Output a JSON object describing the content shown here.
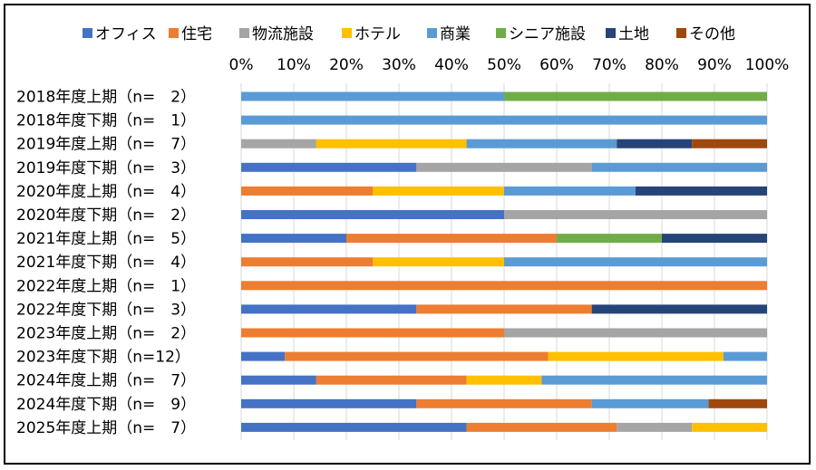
{
  "chart_data": {
    "type": "bar",
    "orientation": "horizontal",
    "stacked": "percent",
    "title": "",
    "xlabel": "",
    "ylabel": "",
    "xlim": [
      0,
      100
    ],
    "x_ticks": [
      "0%",
      "10%",
      "20%",
      "30%",
      "40%",
      "50%",
      "60%",
      "70%",
      "80%",
      "90%",
      "100%"
    ],
    "legend_position": "top",
    "grid": true,
    "categories": [
      "2018年度上期（n=　2）",
      "2018年度下期（n=　1）",
      "2019年度上期（n=　7）",
      "2019年度下期（n=　3）",
      "2020年度上期（n=　4）",
      "2020年度下期（n=　2）",
      "2021年度上期（n=　5）",
      "2021年度下期（n=　4）",
      "2022年度上期（n=　1）",
      "2022年度下期（n=　3）",
      "2023年度上期（n=　2）",
      "2023年度下期（n=12）",
      "2024年度上期（n=　7）",
      "2024年度下期（n=　9）",
      "2025年度上期（n=　7）"
    ],
    "series": [
      {
        "name": "オフィス",
        "color": "#4472C4",
        "values": [
          0,
          0,
          0,
          33.3,
          0,
          50,
          20,
          0,
          0,
          33.3,
          0,
          8.3,
          14.3,
          33.3,
          42.9
        ]
      },
      {
        "name": "住宅",
        "color": "#ED7D31",
        "values": [
          0,
          0,
          0,
          0,
          25,
          0,
          40,
          25,
          100,
          33.3,
          50,
          50,
          28.6,
          33.3,
          28.6
        ]
      },
      {
        "name": "物流施設",
        "color": "#A5A5A5",
        "values": [
          0,
          0,
          14.3,
          33.3,
          0,
          50,
          0,
          0,
          0,
          0,
          50,
          0,
          0,
          0,
          14.3
        ]
      },
      {
        "name": "ホテル",
        "color": "#FFC000",
        "values": [
          0,
          0,
          28.6,
          0,
          25,
          0,
          0,
          25,
          0,
          0,
          0,
          33.3,
          14.3,
          0,
          14.3
        ]
      },
      {
        "name": "商業",
        "color": "#5B9BD5",
        "values": [
          50,
          100,
          28.6,
          33.3,
          25,
          0,
          0,
          50,
          0,
          0,
          0,
          8.3,
          42.9,
          22.2,
          0
        ]
      },
      {
        "name": "シニア施設",
        "color": "#70AD47",
        "values": [
          50,
          0,
          0,
          0,
          0,
          0,
          20,
          0,
          0,
          0,
          0,
          0,
          0,
          0,
          0
        ]
      },
      {
        "name": "土地",
        "color": "#264478",
        "values": [
          0,
          0,
          14.3,
          0,
          25,
          0,
          20,
          0,
          0,
          33.3,
          0,
          0,
          0,
          0,
          0
        ]
      },
      {
        "name": "その他",
        "color": "#9E480E",
        "values": [
          0,
          0,
          14.3,
          0,
          0,
          0,
          0,
          0,
          0,
          0,
          0,
          0,
          0,
          11.1,
          0
        ]
      }
    ]
  }
}
